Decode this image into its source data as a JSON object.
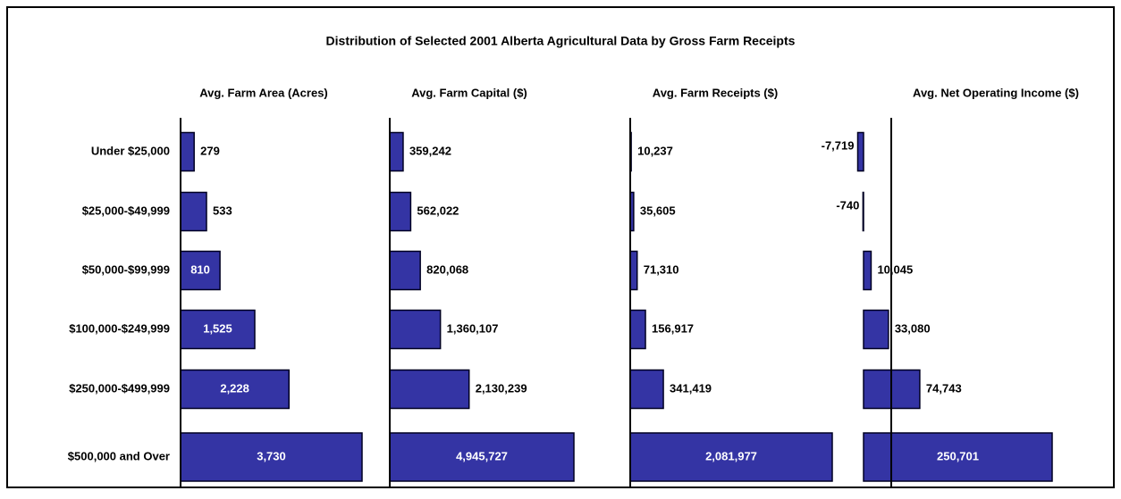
{
  "title": "Distribution of Selected 2001 Alberta Agricultural Data by Gross Farm Receipts",
  "categories": [
    "Under $25,000",
    "$25,000-$49,999",
    "$50,000-$99,999",
    "$100,000-$249,999",
    "$250,000-$499,999",
    "$500,000 and Over"
  ],
  "chart_data": [
    {
      "type": "bar",
      "orientation": "horizontal",
      "title": "Avg. Farm Area (Acres)",
      "color": "#3434a4",
      "values": [
        279,
        533,
        810,
        1525,
        2228,
        3730
      ],
      "value_labels": [
        "279",
        "533",
        "810",
        "1,525",
        "2,228",
        "3,730"
      ]
    },
    {
      "type": "bar",
      "orientation": "horizontal",
      "title": "Avg. Farm Capital ($)",
      "color": "#3434a4",
      "values": [
        359242,
        562022,
        820068,
        1360107,
        2130239,
        4945727
      ],
      "value_labels": [
        "359,242",
        "562,022",
        "820,068",
        "1,360,107",
        "2,130,239",
        "4,945,727"
      ]
    },
    {
      "type": "bar",
      "orientation": "horizontal",
      "title": "Avg. Farm Receipts ($)",
      "color": "#3434a4",
      "values": [
        10237,
        35605,
        71310,
        156917,
        341419,
        2081977
      ],
      "value_labels": [
        "10,237",
        "35,605",
        "71,310",
        "156,917",
        "341,419",
        "2,081,977"
      ]
    },
    {
      "type": "bar",
      "orientation": "horizontal",
      "title": "Avg. Net Operating Income ($)",
      "color": "#3434a4",
      "values": [
        -7719,
        -740,
        10045,
        33080,
        74743,
        250701
      ],
      "value_labels": [
        "-7,719",
        "-740",
        "10,045",
        "33,080",
        "74,743",
        "250,701"
      ]
    }
  ]
}
